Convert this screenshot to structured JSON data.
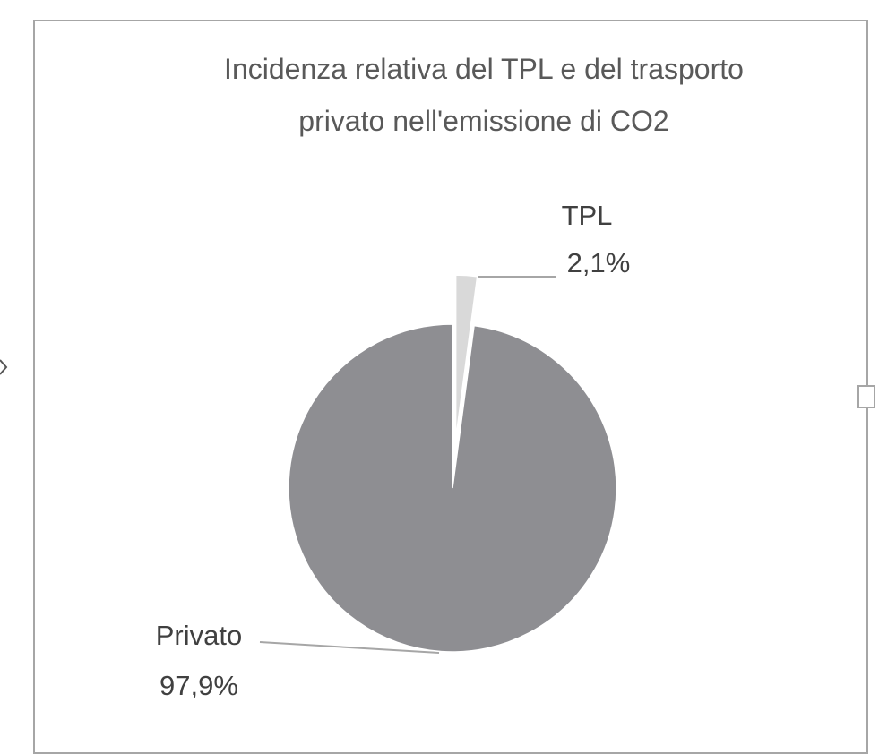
{
  "chart_data": {
    "type": "pie",
    "title": "Incidenza relativa del TPL e del trasporto privato nell'emissione di CO2",
    "categories": [
      "TPL",
      "Privato"
    ],
    "values": [
      2.1,
      97.9
    ],
    "value_labels": [
      "2,1%",
      "97,9%"
    ],
    "colors": [
      "#d9d9d9",
      "#8e8e92"
    ],
    "explode": [
      true,
      false
    ]
  }
}
